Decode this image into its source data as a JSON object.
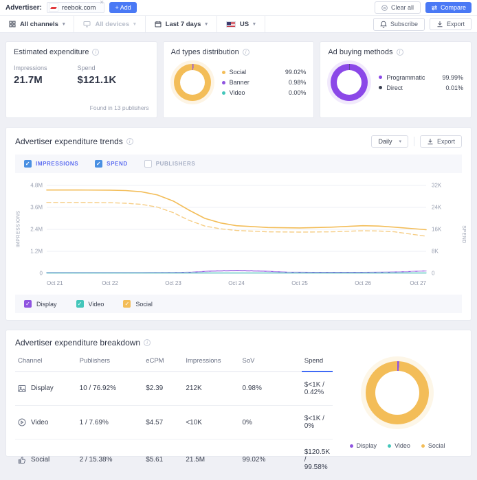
{
  "topbar": {
    "advertiser_label": "Advertiser:",
    "advertiser_chip": "reebok.com",
    "add_button": "+ Add",
    "clear_all_button": "Clear all",
    "compare_button": "Compare"
  },
  "filterbar": {
    "channels": "All channels",
    "devices": "All devices",
    "date_range": "Last 7 days",
    "country": "US",
    "subscribe_button": "Subscribe",
    "export_button": "Export"
  },
  "cards": {
    "estimated_expenditure": {
      "title": "Estimated expenditure",
      "impressions_label": "Impressions",
      "impressions_value": "21.7M",
      "spend_label": "Spend",
      "spend_value": "$121.1K",
      "footnote": "Found in 13 publishers"
    },
    "ad_types": {
      "title": "Ad types distribution",
      "segments": [
        {
          "color": "#8f54e0",
          "pct": 0.98
        },
        {
          "color": "#f3bd58",
          "pct": 99.02
        }
      ],
      "legend": [
        {
          "label": "Social",
          "value": "99.02%",
          "color": "#f3bd58"
        },
        {
          "label": "Banner",
          "value": "0.98%",
          "color": "#8f54e0"
        },
        {
          "label": "Video",
          "value": "0.00%",
          "color": "#43c6ba"
        }
      ]
    },
    "ad_buying": {
      "title": "Ad buying methods",
      "segments": [
        {
          "color": "#3a4050",
          "pct": 0.01
        },
        {
          "color": "#8b48e8",
          "pct": 99.99
        }
      ],
      "legend": [
        {
          "label": "Programmatic",
          "value": "99.99%",
          "color": "#8b48e8"
        },
        {
          "label": "Direct",
          "value": "0.01%",
          "color": "#3a4050"
        }
      ]
    }
  },
  "trends": {
    "title": "Advertiser expenditure trends",
    "period_select": "Daily",
    "export_button": "Export",
    "toggles": [
      {
        "label": "IMPRESSIONS",
        "checked": true
      },
      {
        "label": "SPEND",
        "checked": true
      },
      {
        "label": "PUBLISHERS",
        "checked": false
      }
    ],
    "channel_legend": [
      {
        "label": "Display",
        "color": "#8f54e0"
      },
      {
        "label": "Video",
        "color": "#43c6ba"
      },
      {
        "label": "Social",
        "color": "#f3bd58"
      }
    ]
  },
  "chart_data": {
    "type": "line",
    "x_labels": [
      "Oct 21",
      "Oct 22",
      "Oct 23",
      "Oct 24",
      "Oct 25",
      "Oct 26",
      "Oct 27"
    ],
    "x_max": 6,
    "left_axis": {
      "label": "IMPRESSIONS",
      "max": 4800000,
      "ticks": [
        "0",
        "1.2M",
        "2.4M",
        "3.6M",
        "4.8M"
      ]
    },
    "right_axis": {
      "label": "SPEND",
      "max": 32000,
      "ticks": [
        "0",
        "8K",
        "16K",
        "24K",
        "32K"
      ]
    },
    "grid": true,
    "series": [
      {
        "name": "Social impressions",
        "axis": "left",
        "dash": false,
        "color": "#f3bd58",
        "width": 1.6,
        "x": [
          0,
          0.5,
          1,
          1.25,
          1.5,
          1.75,
          2,
          2.25,
          2.5,
          2.75,
          3,
          3.5,
          4,
          4.5,
          5,
          5.25,
          5.5,
          6
        ],
        "y": [
          4550000,
          4550000,
          4540000,
          4520000,
          4450000,
          4280000,
          3950000,
          3450000,
          3000000,
          2750000,
          2600000,
          2500000,
          2480000,
          2520000,
          2600000,
          2580000,
          2520000,
          2380000
        ]
      },
      {
        "name": "Social spend",
        "axis": "right",
        "dash": true,
        "color": "#f6cd84",
        "width": 1.4,
        "x": [
          0,
          0.5,
          1,
          1.25,
          1.5,
          1.75,
          2,
          2.25,
          2.5,
          2.75,
          3,
          3.5,
          4,
          4.5,
          5,
          5.25,
          5.5,
          6
        ],
        "y": [
          25800,
          25800,
          25700,
          25500,
          25100,
          24100,
          22100,
          19300,
          17200,
          16200,
          15600,
          15100,
          15000,
          15100,
          15500,
          15400,
          15100,
          13500
        ]
      },
      {
        "name": "Display impressions",
        "axis": "left",
        "dash": false,
        "color": "#8f54e0",
        "width": 1.3,
        "x": [
          0,
          0.5,
          1,
          1.5,
          2,
          2.3,
          2.6,
          3,
          3.4,
          3.8,
          4.2,
          4.6,
          5,
          5.4,
          5.7,
          6
        ],
        "y": [
          30000,
          30000,
          30000,
          30000,
          40000,
          60000,
          120000,
          160000,
          120000,
          60000,
          50000,
          50000,
          50000,
          60000,
          90000,
          130000
        ]
      },
      {
        "name": "Display spend",
        "axis": "right",
        "dash": true,
        "color": "#cdb0f1",
        "width": 1.1,
        "x": [
          0,
          0.5,
          1,
          1.5,
          2,
          2.3,
          2.6,
          3,
          3.4,
          3.8,
          4.2,
          4.6,
          5,
          5.4,
          5.7,
          6
        ],
        "y": [
          100,
          100,
          100,
          100,
          200,
          350,
          650,
          900,
          650,
          350,
          250,
          250,
          250,
          350,
          550,
          800
        ]
      },
      {
        "name": "Video impressions",
        "axis": "left",
        "dash": false,
        "color": "#43c6ba",
        "width": 1.3,
        "x": [
          0,
          6
        ],
        "y": [
          20000,
          20000
        ]
      }
    ]
  },
  "breakdown": {
    "title": "Advertiser expenditure breakdown",
    "columns": [
      "Channel",
      "Publishers",
      "eCPM",
      "Impressions",
      "SoV",
      "Spend"
    ],
    "sorted_column": "Spend",
    "rows": [
      {
        "channel": "Display",
        "publishers": "10 / 76.92%",
        "ecpm": "$2.39",
        "impressions": "212K",
        "sov": "0.98%",
        "spend": "$<1K / 0.42%"
      },
      {
        "channel": "Video",
        "publishers": "1 / 7.69%",
        "ecpm": "$4.57",
        "impressions": "<10K",
        "sov": "0%",
        "spend": "$<1K / 0%"
      },
      {
        "channel": "Social",
        "publishers": "2 / 15.38%",
        "ecpm": "$5.61",
        "impressions": "21.5M",
        "sov": "99.02%",
        "spend": "$120.5K / 99.58%"
      }
    ],
    "donut_segments": [
      {
        "color": "#8f54e0",
        "pct": 0.98
      },
      {
        "color": "#43c6ba",
        "pct": 0.0
      },
      {
        "color": "#f3bd58",
        "pct": 99.02
      }
    ],
    "legend": [
      {
        "label": "Display",
        "color": "#8f54e0"
      },
      {
        "label": "Video",
        "color": "#43c6ba"
      },
      {
        "label": "Social",
        "color": "#f3bd58"
      }
    ]
  }
}
